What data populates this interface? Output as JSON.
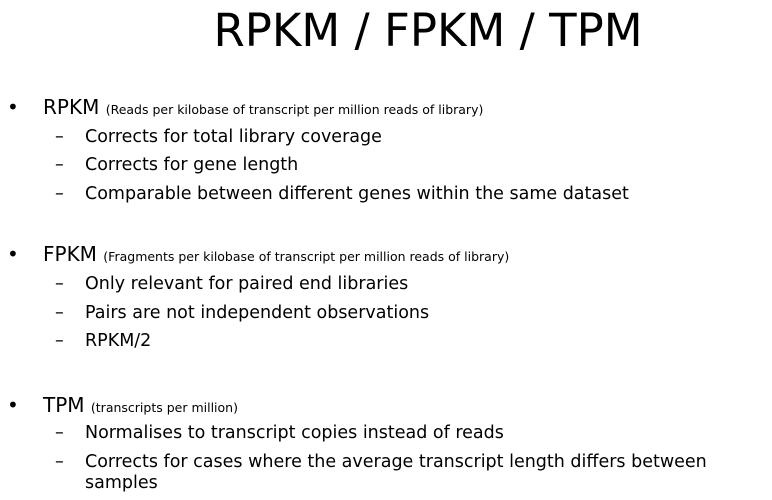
{
  "slide": {
    "title": "RPKM / FPKM / TPM",
    "bullet_glyph": "•",
    "dash_glyph": "–",
    "sections": [
      {
        "term": "RPKM",
        "expansion": "(Reads per kilobase of transcript per million reads of library)",
        "points": [
          "Corrects for total library coverage",
          "Corrects for gene length",
          "Comparable between different genes within the same dataset"
        ]
      },
      {
        "term": "FPKM",
        "expansion": "(Fragments per kilobase of transcript per million reads of library)",
        "points": [
          "Only relevant for paired end libraries",
          "Pairs are not independent observations",
          "RPKM/2"
        ]
      },
      {
        "term": "TPM",
        "expansion": "(transcripts per million)",
        "points": [
          "Normalises to transcript copies instead of reads",
          "Corrects for cases where the average transcript length differs between",
          "samples"
        ]
      }
    ]
  }
}
